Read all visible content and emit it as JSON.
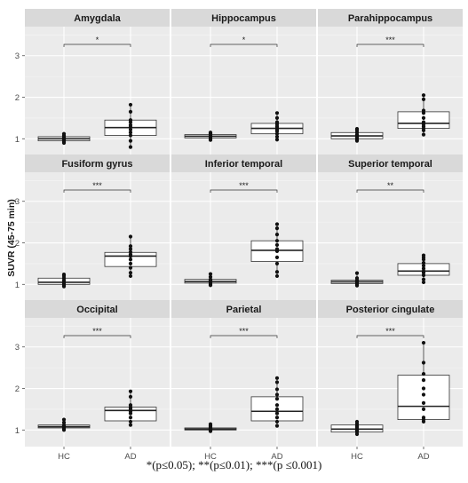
{
  "chart_data": {
    "type": "box",
    "ylabel": "SUVR (45-75 min)",
    "categories": [
      "HC",
      "AD"
    ],
    "yticks": [
      1,
      2,
      3
    ],
    "ylim": [
      0.6,
      3.7
    ],
    "grid": true,
    "footnote": "*(p≤0.05); **(p≤0.01); ***(p ≤0.001)",
    "panels": [
      {
        "title": "Amygdala",
        "significance": "*",
        "HC": {
          "q1": 0.95,
          "median": 1.0,
          "q3": 1.05,
          "points": [
            0.9,
            0.92,
            0.95,
            0.97,
            1.0,
            1.02,
            1.05,
            1.08,
            1.12
          ]
        },
        "AD": {
          "q1": 1.08,
          "median": 1.27,
          "q3": 1.45,
          "points": [
            0.8,
            0.95,
            1.08,
            1.15,
            1.22,
            1.28,
            1.33,
            1.4,
            1.45,
            1.65,
            1.82
          ]
        }
      },
      {
        "title": "Hippocampus",
        "significance": "*",
        "HC": {
          "q1": 1.02,
          "median": 1.06,
          "q3": 1.1,
          "points": [
            0.97,
            1.0,
            1.02,
            1.04,
            1.06,
            1.08,
            1.1,
            1.12,
            1.15
          ]
        },
        "AD": {
          "q1": 1.12,
          "median": 1.25,
          "q3": 1.37,
          "points": [
            0.98,
            1.05,
            1.12,
            1.18,
            1.22,
            1.26,
            1.3,
            1.35,
            1.4,
            1.5,
            1.62
          ]
        }
      },
      {
        "title": "Parahippocampus",
        "significance": "***",
        "HC": {
          "q1": 1.0,
          "median": 1.07,
          "q3": 1.15,
          "points": [
            0.95,
            0.98,
            1.0,
            1.03,
            1.07,
            1.1,
            1.15,
            1.2,
            1.24
          ]
        },
        "AD": {
          "q1": 1.25,
          "median": 1.37,
          "q3": 1.65,
          "points": [
            1.1,
            1.2,
            1.25,
            1.3,
            1.35,
            1.4,
            1.5,
            1.62,
            1.68,
            1.95,
            2.05
          ]
        }
      },
      {
        "title": "Fusiform gyrus",
        "significance": "***",
        "HC": {
          "q1": 1.0,
          "median": 1.05,
          "q3": 1.15,
          "points": [
            0.95,
            0.98,
            1.0,
            1.03,
            1.06,
            1.1,
            1.15,
            1.2,
            1.24
          ]
        },
        "AD": {
          "q1": 1.43,
          "median": 1.68,
          "q3": 1.77,
          "points": [
            1.2,
            1.28,
            1.4,
            1.5,
            1.6,
            1.68,
            1.72,
            1.78,
            1.85,
            1.92,
            2.15
          ]
        }
      },
      {
        "title": "Inferior temporal",
        "significance": "***",
        "HC": {
          "q1": 1.03,
          "median": 1.07,
          "q3": 1.12,
          "points": [
            0.98,
            1.0,
            1.03,
            1.05,
            1.08,
            1.1,
            1.12,
            1.18,
            1.25
          ]
        },
        "AD": {
          "q1": 1.55,
          "median": 1.82,
          "q3": 2.05,
          "points": [
            1.2,
            1.3,
            1.5,
            1.65,
            1.8,
            1.85,
            1.95,
            2.05,
            2.2,
            2.35,
            2.45
          ]
        }
      },
      {
        "title": "Superior temporal",
        "significance": "**",
        "HC": {
          "q1": 1.02,
          "median": 1.06,
          "q3": 1.1,
          "points": [
            0.97,
            1.0,
            1.02,
            1.05,
            1.07,
            1.09,
            1.1,
            1.15,
            1.27
          ]
        },
        "AD": {
          "q1": 1.22,
          "median": 1.32,
          "q3": 1.5,
          "points": [
            1.05,
            1.12,
            1.22,
            1.28,
            1.32,
            1.38,
            1.45,
            1.52,
            1.6,
            1.65,
            1.7
          ]
        }
      },
      {
        "title": "Occipital",
        "significance": "***",
        "HC": {
          "q1": 1.05,
          "median": 1.08,
          "q3": 1.12,
          "points": [
            1.0,
            1.02,
            1.05,
            1.07,
            1.08,
            1.1,
            1.12,
            1.18,
            1.25
          ]
        },
        "AD": {
          "q1": 1.22,
          "median": 1.47,
          "q3": 1.55,
          "points": [
            1.12,
            1.2,
            1.3,
            1.4,
            1.45,
            1.5,
            1.52,
            1.55,
            1.6,
            1.8,
            1.93
          ]
        }
      },
      {
        "title": "Parietal",
        "significance": "***",
        "HC": {
          "q1": 1.0,
          "median": 1.02,
          "q3": 1.05,
          "points": [
            0.97,
            0.99,
            1.0,
            1.02,
            1.03,
            1.05,
            1.07,
            1.1,
            1.14
          ]
        },
        "AD": {
          "q1": 1.22,
          "median": 1.45,
          "q3": 1.8,
          "points": [
            1.1,
            1.2,
            1.3,
            1.4,
            1.5,
            1.6,
            1.75,
            1.85,
            1.98,
            2.15,
            2.25
          ]
        }
      },
      {
        "title": "Posterior cingulate",
        "significance": "***",
        "HC": {
          "q1": 0.95,
          "median": 1.02,
          "q3": 1.12,
          "points": [
            0.9,
            0.95,
            0.98,
            1.0,
            1.03,
            1.07,
            1.1,
            1.15,
            1.2
          ]
        },
        "AD": {
          "q1": 1.25,
          "median": 1.57,
          "q3": 2.32,
          "points": [
            1.2,
            1.25,
            1.3,
            1.5,
            1.65,
            1.85,
            2.0,
            2.2,
            2.35,
            2.62,
            3.1
          ]
        }
      }
    ]
  }
}
